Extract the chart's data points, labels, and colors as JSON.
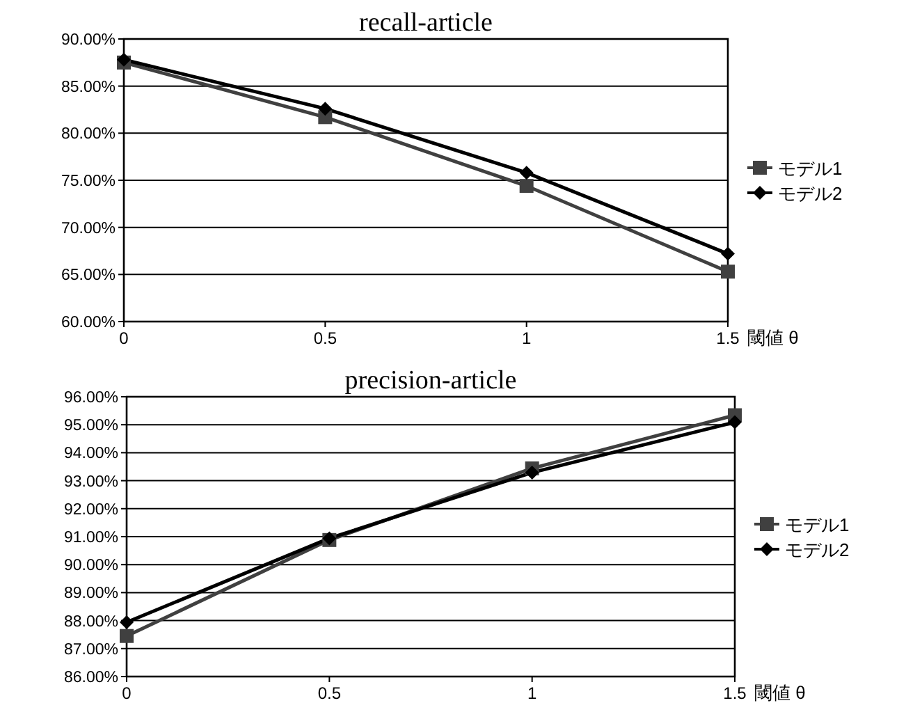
{
  "chart_data": [
    {
      "type": "line",
      "title": "recall-article",
      "xlabel": "閾値 θ",
      "x": [
        0,
        0.5,
        1,
        1.5
      ],
      "xlim": [
        0,
        1.5
      ],
      "xticks": [
        0,
        0.5,
        1,
        1.5
      ],
      "ylim": [
        60,
        90
      ],
      "yticks": [
        {
          "value": 60,
          "label": "60.00%"
        },
        {
          "value": 65,
          "label": "65.00%"
        },
        {
          "value": 70,
          "label": "70.00%"
        },
        {
          "value": 75,
          "label": "75.00%"
        },
        {
          "value": 80,
          "label": "80.00%"
        },
        {
          "value": 85,
          "label": "85.00%"
        },
        {
          "value": 90,
          "label": "90.00%"
        }
      ],
      "grid": "y",
      "legend": "right",
      "series": [
        {
          "name": "モデル1",
          "color": "#404040",
          "marker": "square",
          "values": [
            87.5,
            81.7,
            74.4,
            65.3
          ]
        },
        {
          "name": "モデル2",
          "color": "#000000",
          "marker": "diamond",
          "values": [
            87.8,
            82.6,
            75.8,
            67.2
          ]
        }
      ]
    },
    {
      "type": "line",
      "title": "precision-article",
      "xlabel": "閾値 θ",
      "x": [
        0,
        0.5,
        1,
        1.5
      ],
      "xlim": [
        0,
        1.5
      ],
      "xticks": [
        0,
        0.5,
        1,
        1.5
      ],
      "ylim": [
        86,
        96
      ],
      "yticks": [
        {
          "value": 86,
          "label": "86.00%"
        },
        {
          "value": 87,
          "label": "87.00%"
        },
        {
          "value": 88,
          "label": "88.00%"
        },
        {
          "value": 89,
          "label": "89.00%"
        },
        {
          "value": 90,
          "label": "90.00%"
        },
        {
          "value": 91,
          "label": "91.00%"
        },
        {
          "value": 92,
          "label": "92.00%"
        },
        {
          "value": 93,
          "label": "93.00%"
        },
        {
          "value": 94,
          "label": "94.00%"
        },
        {
          "value": 95,
          "label": "95.00%"
        },
        {
          "value": 96,
          "label": "96.00%"
        }
      ],
      "grid": "y",
      "legend": "right",
      "series": [
        {
          "name": "モデル1",
          "color": "#404040",
          "marker": "square",
          "values": [
            87.45,
            90.88,
            93.44,
            95.34
          ]
        },
        {
          "name": "モデル2",
          "color": "#000000",
          "marker": "diamond",
          "values": [
            87.94,
            90.94,
            93.29,
            95.09
          ]
        }
      ]
    }
  ]
}
